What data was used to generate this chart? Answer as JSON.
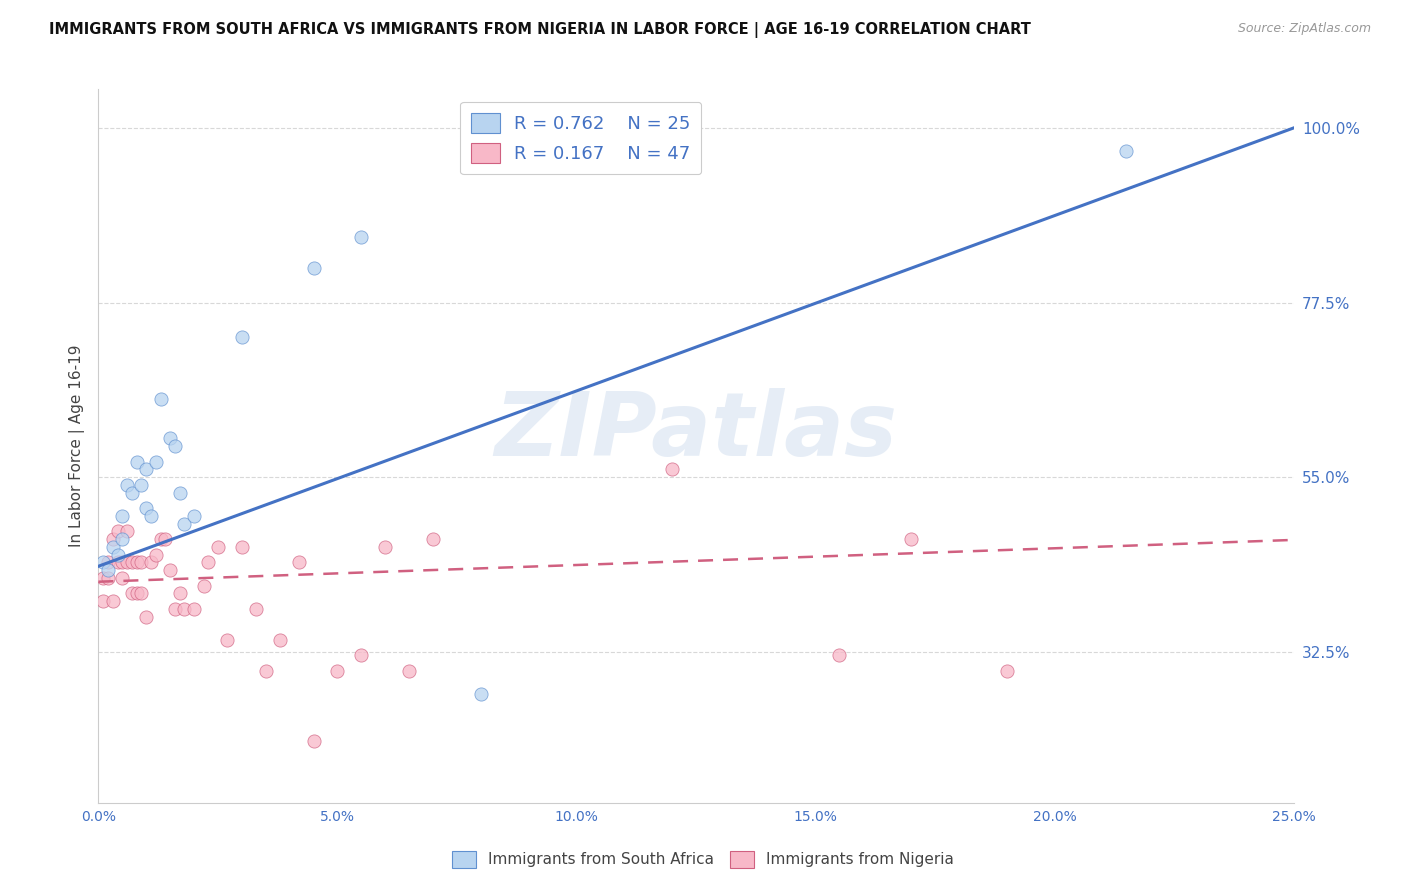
{
  "title": "IMMIGRANTS FROM SOUTH AFRICA VS IMMIGRANTS FROM NIGERIA IN LABOR FORCE | AGE 16-19 CORRELATION CHART",
  "source": "Source: ZipAtlas.com",
  "ylabel": "In Labor Force | Age 16-19",
  "xlim": [
    0.0,
    0.25
  ],
  "ylim": [
    0.13,
    1.05
  ],
  "xtick_labels": [
    "0.0%",
    "5.0%",
    "10.0%",
    "15.0%",
    "20.0%",
    "25.0%"
  ],
  "xtick_values": [
    0.0,
    0.05,
    0.1,
    0.15,
    0.2,
    0.25
  ],
  "ytick_labels": [
    "100.0%",
    "77.5%",
    "55.0%",
    "32.5%"
  ],
  "ytick_values": [
    1.0,
    0.775,
    0.55,
    0.325
  ],
  "legend_labels": [
    "Immigrants from South Africa",
    "Immigrants from Nigeria"
  ],
  "legend_r_values": [
    "R = 0.762",
    "R = 0.167"
  ],
  "legend_n_values": [
    "N = 25",
    "N = 47"
  ],
  "blue_color": "#b8d4f0",
  "blue_edge_color": "#6090d0",
  "blue_line_color": "#4472c4",
  "pink_color": "#f8b8c8",
  "pink_edge_color": "#d06080",
  "pink_line_color": "#d06080",
  "watermark_text": "ZIPatlas",
  "blue_scatter_x": [
    0.001,
    0.002,
    0.003,
    0.004,
    0.005,
    0.005,
    0.006,
    0.007,
    0.008,
    0.009,
    0.01,
    0.01,
    0.011,
    0.012,
    0.013,
    0.015,
    0.016,
    0.017,
    0.018,
    0.02,
    0.03,
    0.045,
    0.055,
    0.08,
    0.215
  ],
  "blue_scatter_y": [
    0.44,
    0.43,
    0.46,
    0.45,
    0.5,
    0.47,
    0.54,
    0.53,
    0.57,
    0.54,
    0.56,
    0.51,
    0.5,
    0.57,
    0.65,
    0.6,
    0.59,
    0.53,
    0.49,
    0.5,
    0.73,
    0.82,
    0.86,
    0.27,
    0.97
  ],
  "pink_scatter_x": [
    0.001,
    0.001,
    0.002,
    0.002,
    0.003,
    0.003,
    0.004,
    0.004,
    0.005,
    0.005,
    0.006,
    0.006,
    0.007,
    0.007,
    0.008,
    0.008,
    0.009,
    0.009,
    0.01,
    0.011,
    0.012,
    0.013,
    0.014,
    0.015,
    0.016,
    0.017,
    0.018,
    0.02,
    0.022,
    0.023,
    0.025,
    0.027,
    0.03,
    0.033,
    0.035,
    0.038,
    0.042,
    0.045,
    0.05,
    0.055,
    0.06,
    0.065,
    0.07,
    0.12,
    0.155,
    0.17,
    0.19
  ],
  "pink_scatter_y": [
    0.42,
    0.39,
    0.44,
    0.42,
    0.39,
    0.47,
    0.48,
    0.44,
    0.44,
    0.42,
    0.48,
    0.44,
    0.44,
    0.4,
    0.44,
    0.4,
    0.44,
    0.4,
    0.37,
    0.44,
    0.45,
    0.47,
    0.47,
    0.43,
    0.38,
    0.4,
    0.38,
    0.38,
    0.41,
    0.44,
    0.46,
    0.34,
    0.46,
    0.38,
    0.3,
    0.34,
    0.44,
    0.21,
    0.3,
    0.32,
    0.46,
    0.3,
    0.47,
    0.56,
    0.32,
    0.47,
    0.3
  ],
  "blue_line_x": [
    0.0,
    0.25
  ],
  "blue_line_y": [
    0.435,
    1.0
  ],
  "pink_line_x": [
    0.0,
    0.255
  ],
  "pink_line_y": [
    0.415,
    0.47
  ],
  "bg_color": "#ffffff",
  "grid_color": "#d8d8d8",
  "title_color": "#111111",
  "axis_label_color": "#4472c4",
  "ylabel_color": "#444444",
  "source_color": "#999999",
  "scatter_size": 90,
  "scatter_alpha": 0.75
}
